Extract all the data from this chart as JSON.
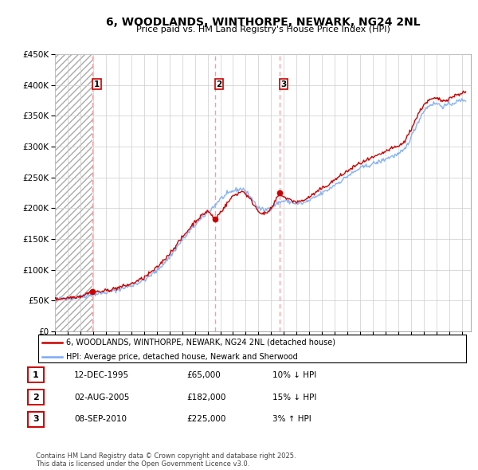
{
  "title": "6, WOODLANDS, WINTHORPE, NEWARK, NG24 2NL",
  "subtitle": "Price paid vs. HM Land Registry's House Price Index (HPI)",
  "ylim": [
    0,
    450000
  ],
  "yticks": [
    0,
    50000,
    100000,
    150000,
    200000,
    250000,
    300000,
    350000,
    400000,
    450000
  ],
  "xlim_start": 1993.0,
  "xlim_end": 2025.7,
  "sale_dates": [
    1995.95,
    2005.58,
    2010.67
  ],
  "sale_prices": [
    65000,
    182000,
    225000
  ],
  "sale_labels": [
    "1",
    "2",
    "3"
  ],
  "legend_line1": "6, WOODLANDS, WINTHORPE, NEWARK, NG24 2NL (detached house)",
  "legend_line2": "HPI: Average price, detached house, Newark and Sherwood",
  "table_rows": [
    {
      "num": "1",
      "date": "12-DEC-1995",
      "price": "£65,000",
      "change": "10% ↓ HPI"
    },
    {
      "num": "2",
      "date": "02-AUG-2005",
      "price": "£182,000",
      "change": "15% ↓ HPI"
    },
    {
      "num": "3",
      "date": "08-SEP-2010",
      "price": "£225,000",
      "change": "3% ↑ HPI"
    }
  ],
  "footnote": "Contains HM Land Registry data © Crown copyright and database right 2025.\nThis data is licensed under the Open Government Licence v3.0.",
  "hpi_color": "#7aabf5",
  "price_color": "#cc0000",
  "vline_color": "#ff8888",
  "bg_color": "#ffffff",
  "grid_color": "#cccccc"
}
